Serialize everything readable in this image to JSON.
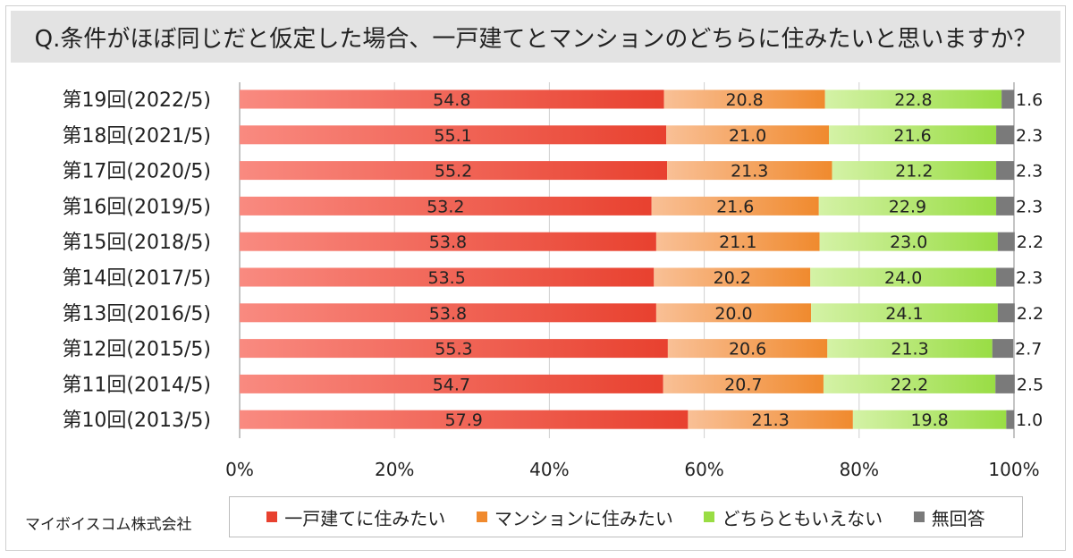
{
  "title": "Q.条件がほぼ同じだと仮定した場合、一戸建てとマンションのどちらに住みたいと思いますか？",
  "source": "マイボイスコム株式会社",
  "colors": {
    "house": "#e8412f",
    "house_light": "#f98a80",
    "mansion": "#f08a2e",
    "mansion_light": "#f9c096",
    "neither": "#99dd44",
    "neither_light": "#d4f2a6",
    "no_answer": "#7a7a7a",
    "grid": "#cfcfcf"
  },
  "chart_data": {
    "type": "bar",
    "orientation": "horizontal",
    "stacked": true,
    "categories": [
      "第19回(2022/5)",
      "第18回(2021/5)",
      "第17回(2020/5)",
      "第16回(2019/5)",
      "第15回(2018/5)",
      "第14回(2017/5)",
      "第13回(2016/5)",
      "第12回(2015/5)",
      "第11回(2014/5)",
      "第10回(2013/5)"
    ],
    "series": [
      {
        "name": "一戸建てに住みたい",
        "values": [
          54.8,
          55.1,
          55.2,
          53.2,
          53.8,
          53.5,
          53.8,
          55.3,
          54.7,
          57.9
        ]
      },
      {
        "name": "マンションに住みたい",
        "values": [
          20.8,
          21.0,
          21.3,
          21.6,
          21.1,
          20.2,
          20.0,
          20.6,
          20.7,
          21.3
        ]
      },
      {
        "name": "どちらともいえない",
        "values": [
          22.8,
          21.6,
          21.2,
          22.9,
          23.0,
          24.0,
          24.1,
          21.3,
          22.2,
          19.8
        ]
      },
      {
        "name": "無回答",
        "values": [
          1.6,
          2.3,
          2.3,
          2.3,
          2.2,
          2.3,
          2.2,
          2.7,
          2.5,
          1.0
        ]
      }
    ],
    "value_labels": {
      "house": [
        "54.8",
        "55.1",
        "55.2",
        "53.2",
        "53.8",
        "53.5",
        "53.8",
        "55.3",
        "54.7",
        "57.9"
      ],
      "mansion": [
        "20.8",
        "21.0",
        "21.3",
        "21.6",
        "21.1",
        "20.2",
        "20.0",
        "20.6",
        "20.7",
        "21.3"
      ],
      "neither": [
        "22.8",
        "21.6",
        "21.2",
        "22.9",
        "23.0",
        "24.0",
        "24.1",
        "21.3",
        "22.2",
        "19.8"
      ],
      "no_answer": [
        "1.6",
        "2.3",
        "2.3",
        "2.3",
        "2.2",
        "2.3",
        "2.2",
        "2.7",
        "2.5",
        "1.0"
      ]
    },
    "xlim": [
      0,
      100
    ],
    "x_ticks": [
      "0%",
      "20%",
      "40%",
      "60%",
      "80%",
      "100%"
    ],
    "grid": true,
    "legend_position": "bottom"
  },
  "legend": {
    "items": [
      {
        "label": "一戸建てに住みたい",
        "color": "#e8412f"
      },
      {
        "label": "マンションに住みたい",
        "color": "#f08a2e"
      },
      {
        "label": "どちらともいえない",
        "color": "#99dd44"
      },
      {
        "label": "無回答",
        "color": "#7a7a7a"
      }
    ]
  }
}
